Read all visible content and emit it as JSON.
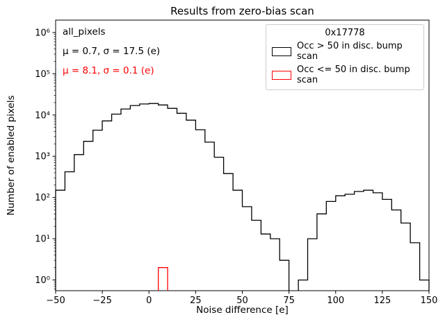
{
  "chart_data": {
    "type": "bar",
    "subtype": "step-histogram",
    "title": "Results from zero-bias scan",
    "xlabel": "Noise difference [e]",
    "ylabel": "Number of enabled pixels",
    "xlim": [
      -50,
      150
    ],
    "yscale": "log",
    "ylog_min": 0.55,
    "ylog_max": 2000000,
    "grid": false,
    "bin_start": -50,
    "bin_width": 5,
    "x_ticks": [
      -50,
      -25,
      0,
      25,
      50,
      75,
      100,
      125,
      150
    ],
    "x_tick_labels": [
      "−50",
      "−25",
      "0",
      "25",
      "50",
      "75",
      "100",
      "125",
      "150"
    ],
    "y_ticks": [
      1,
      10,
      100,
      1000,
      10000,
      100000,
      1000000
    ],
    "y_tick_labels": [
      "10⁰",
      "10¹",
      "10²",
      "10³",
      "10⁴",
      "10⁵",
      "10⁶"
    ],
    "series": [
      {
        "name": "Occ > 50 in disc. bump scan",
        "color": "#000000",
        "values": [
          150,
          420,
          1100,
          2300,
          4300,
          7200,
          10500,
          14000,
          17000,
          18500,
          19000,
          17500,
          14500,
          11000,
          7500,
          4400,
          2200,
          950,
          380,
          150,
          60,
          28,
          13,
          10,
          3,
          0,
          1,
          10,
          40,
          80,
          110,
          120,
          140,
          150,
          130,
          90,
          50,
          24,
          8,
          1
        ]
      },
      {
        "name": "Occ <= 50 in disc. bump scan",
        "color": "#ff0000",
        "values": [
          0,
          0,
          0,
          0,
          0,
          0,
          0,
          0,
          0,
          0,
          0,
          2,
          0,
          0,
          0,
          0,
          0,
          0,
          0,
          0,
          0,
          0,
          0,
          0,
          0,
          0,
          0,
          0,
          0,
          0,
          0,
          0,
          0,
          0,
          0,
          0,
          0,
          0,
          0,
          0
        ]
      }
    ],
    "annotations": {
      "dataset": "all_pixels",
      "black_stats": "μ = 0.7, σ = 17.5 (e)",
      "red_stats": "μ = 8.1, σ = 0.1 (e)"
    },
    "legend": {
      "title": "0x17778",
      "position": "upper right"
    }
  }
}
